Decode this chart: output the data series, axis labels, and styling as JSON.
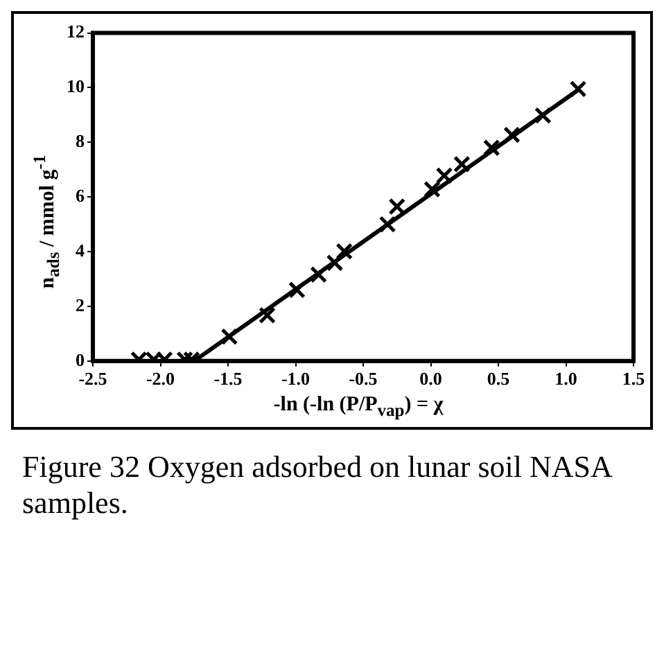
{
  "chart_data": {
    "type": "scatter",
    "xlabel": "-ln (-ln (P/P$_{vap}$) = χ",
    "ylabel": "n$_{ads}$ / mmol g$^{-1}$",
    "xlim": [
      -2.5,
      1.5
    ],
    "xticks": [
      -2.5,
      {
        "value": -2,
        "label": "-2.0"
      },
      -1.5,
      {
        "value": -1,
        "label": "-1.0"
      },
      -0.5,
      {
        "value": 0,
        "label": "0.0"
      },
      0.5,
      {
        "value": 1,
        "label": "1.0"
      },
      1.5
    ],
    "ylim": [
      0,
      12
    ],
    "yticks": [
      0,
      2,
      4,
      6,
      8,
      10,
      12
    ],
    "grid": false,
    "legend": false,
    "series": [
      {
        "type": "scatter",
        "marker": "cross",
        "color": "#000000",
        "x": [
          -2.16,
          -2.05,
          -1.97,
          -1.82,
          -1.77,
          -1.49,
          -1.21,
          -0.99,
          -0.83,
          -0.71,
          -0.64,
          -0.32,
          -0.25,
          0.01,
          0.05,
          0.1,
          0.23,
          0.45,
          0.6,
          0.83,
          1.09
        ],
        "values": [
          0.05,
          0.05,
          0.05,
          0.05,
          0.05,
          0.89,
          1.67,
          2.6,
          3.16,
          3.59,
          4.01,
          5.0,
          5.65,
          6.28,
          null,
          6.78,
          7.2,
          7.8,
          8.27,
          8.98,
          9.95
        ]
      },
      {
        "type": "line",
        "marker": "none",
        "line_style": "solid",
        "color": "#000000",
        "x": [
          -1.75,
          1.1
        ],
        "values": [
          0,
          9.95
        ]
      }
    ],
    "annotations": [
      "Figure 32 Oxygen adsorbed on lunar soil NASA samples."
    ]
  }
}
